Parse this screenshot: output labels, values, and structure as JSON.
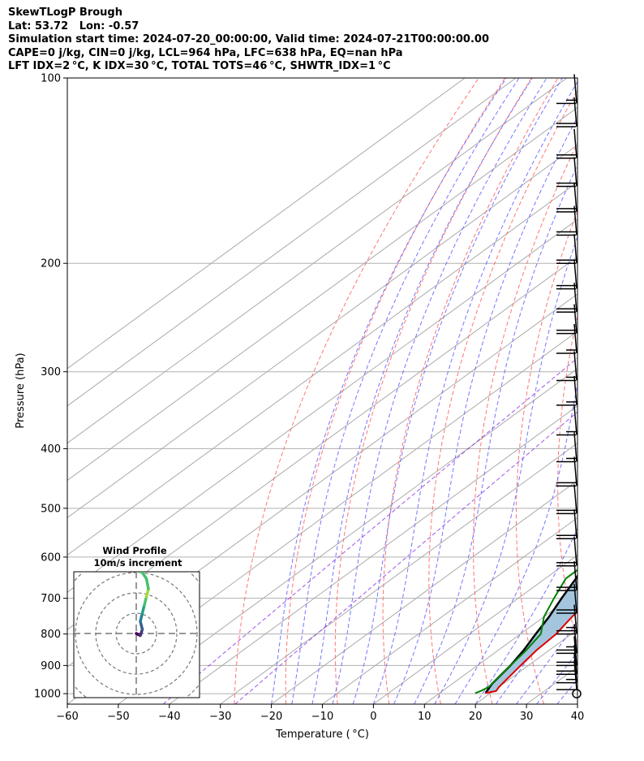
{
  "header": {
    "line1": "SkewTLogP Brough",
    "line2": "Lat: 53.72   Lon: -0.57",
    "line3": "Simulation start time: 2024-07-20_00:00:00, Valid time: 2024-07-21T00:00:00.00",
    "line4": "CAPE=0 j/kg, CIN=0 j/kg, LCL=964 hPa, LFC=638 hPa, EQ=nan hPa",
    "line5": "LFT IDX=2 °C, K IDX=30 °C, TOTAL TOTS=46 °C, SHWTR_IDX=1 °C"
  },
  "chart_data": {
    "type": "skewt",
    "xlabel": "Temperature ( °C)",
    "ylabel": "Pressure (hPa)",
    "xlim": [
      -60,
      40
    ],
    "ylim": [
      1040,
      100
    ],
    "x_ticks": [
      "−60",
      "−50",
      "−40",
      "−30",
      "−20",
      "−10",
      "0",
      "10",
      "20",
      "30",
      "40"
    ],
    "y_ticks": [
      "100",
      "200",
      "300",
      "400",
      "500",
      "600",
      "700",
      "800",
      "900",
      "1000"
    ],
    "grid": true,
    "temperature": [
      [
        998,
        19
      ],
      [
        990,
        20.5
      ],
      [
        975,
        20
      ],
      [
        950,
        19.5
      ],
      [
        900,
        18.5
      ],
      [
        850,
        17.5
      ],
      [
        800,
        17
      ],
      [
        750,
        15.5
      ],
      [
        700,
        14.5
      ],
      [
        650,
        14
      ],
      [
        600,
        12.8
      ],
      [
        550,
        11.5
      ],
      [
        500,
        10
      ],
      [
        450,
        8
      ],
      [
        400,
        6
      ],
      [
        350,
        2
      ],
      [
        300,
        -3
      ],
      [
        270,
        -7
      ],
      [
        250,
        -10
      ],
      [
        230,
        -14
      ],
      [
        210,
        -17
      ],
      [
        200,
        -18
      ],
      [
        185,
        -18
      ],
      [
        170,
        -19
      ],
      [
        150,
        -21
      ],
      [
        130,
        -24
      ],
      [
        115,
        -27
      ],
      [
        100,
        -32
      ]
    ],
    "dewpoint": [
      [
        998,
        17
      ],
      [
        990,
        17.5
      ],
      [
        975,
        18
      ],
      [
        950,
        17.5
      ],
      [
        900,
        16.5
      ],
      [
        850,
        15.5
      ],
      [
        800,
        14
      ],
      [
        750,
        10
      ],
      [
        700,
        7
      ],
      [
        650,
        4
      ],
      [
        600,
        4
      ],
      [
        550,
        5
      ],
      [
        500,
        5
      ],
      [
        450,
        1
      ],
      [
        400,
        -3
      ],
      [
        370,
        -5
      ],
      [
        350,
        -6
      ],
      [
        320,
        -6
      ],
      [
        300,
        -7
      ],
      [
        270,
        -10
      ],
      [
        250,
        -12
      ],
      [
        230,
        -14
      ],
      [
        215,
        -19
      ],
      [
        200,
        -24
      ],
      [
        185,
        -27
      ],
      [
        170,
        -30
      ],
      [
        160,
        -30.5
      ],
      [
        150,
        -30
      ],
      [
        100,
        -44
      ]
    ],
    "parcel": [
      [
        998,
        19
      ],
      [
        964,
        17.8
      ],
      [
        900,
        16.5
      ],
      [
        850,
        15
      ],
      [
        800,
        13
      ],
      [
        750,
        11
      ],
      [
        700,
        8.5
      ],
      [
        650,
        6
      ],
      [
        600,
        3
      ],
      [
        550,
        0
      ],
      [
        500,
        -3.5
      ],
      [
        450,
        -8
      ],
      [
        400,
        -13
      ],
      [
        350,
        -18.5
      ],
      [
        300,
        -25
      ],
      [
        250,
        -34
      ],
      [
        200,
        -45
      ],
      [
        150,
        -57
      ],
      [
        100,
        -75
      ]
    ],
    "wind_barbs": [
      {
        "p": 1000,
        "speed_kt": 0
      },
      {
        "p": 985,
        "speed_kt": 10
      },
      {
        "p": 960,
        "speed_kt": 15
      },
      {
        "p": 930,
        "speed_kt": 20
      },
      {
        "p": 900,
        "speed_kt": 20
      },
      {
        "p": 860,
        "speed_kt": 25
      },
      {
        "p": 800,
        "speed_kt": 25
      },
      {
        "p": 740,
        "speed_kt": 20
      },
      {
        "p": 680,
        "speed_kt": 20
      },
      {
        "p": 620,
        "speed_kt": 20
      },
      {
        "p": 560,
        "speed_kt": 20
      },
      {
        "p": 510,
        "speed_kt": 20
      },
      {
        "p": 460,
        "speed_kt": 20
      },
      {
        "p": 420,
        "speed_kt": 15
      },
      {
        "p": 380,
        "speed_kt": 15
      },
      {
        "p": 340,
        "speed_kt": 15
      },
      {
        "p": 310,
        "speed_kt": 15
      },
      {
        "p": 280,
        "speed_kt": 15
      },
      {
        "p": 260,
        "speed_kt": 20
      },
      {
        "p": 240,
        "speed_kt": 20
      },
      {
        "p": 220,
        "speed_kt": 20
      },
      {
        "p": 200,
        "speed_kt": 20
      },
      {
        "p": 180,
        "speed_kt": 20
      },
      {
        "p": 165,
        "speed_kt": 20
      },
      {
        "p": 150,
        "speed_kt": 20
      },
      {
        "p": 135,
        "speed_kt": 20
      },
      {
        "p": 120,
        "speed_kt": 20
      },
      {
        "p": 110,
        "speed_kt": 15
      }
    ],
    "hodograph": {
      "title": "Wind Profile",
      "subtitle": "10m/s increment",
      "points": [
        [
          0,
          0
        ],
        [
          2,
          -1
        ],
        [
          3,
          2
        ],
        [
          2,
          6
        ],
        [
          3,
          10
        ],
        [
          4,
          14
        ],
        [
          5,
          18
        ],
        [
          6,
          22
        ],
        [
          5,
          27
        ],
        [
          3,
          30
        ],
        [
          -2,
          34
        ],
        [
          -5,
          37
        ]
      ]
    }
  },
  "colors": {
    "temperature": "#e00000",
    "dewpoint": "#008000",
    "parcel": "#000000",
    "shade": "#a3c6de",
    "dry_adiabat": "#ff6666",
    "moist_adiabat": "#6666ff",
    "mixing_ratio": "#8a2be2",
    "isotherm": "#aaaaaa"
  }
}
